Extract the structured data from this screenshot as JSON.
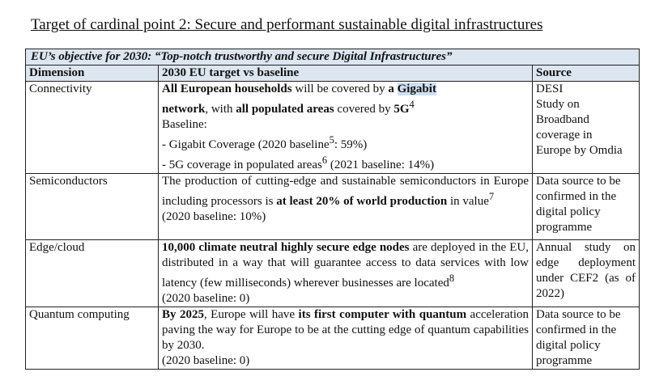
{
  "title": "Target of cardinal point 2: Secure and performant sustainable digital infrastructures",
  "objective": "EU’s objective for 2030: “Top-notch trustworthy and secure Digital Infrastructures”",
  "headers": {
    "dimension": "Dimension",
    "target": "2030 EU target vs baseline",
    "source": "Source"
  },
  "rows": [
    {
      "dimension": "Connectivity",
      "t1": "All European households",
      "t2": " will be covered by ",
      "t3": "a ",
      "t4": "Gigabit",
      "t5": " network",
      "t6": ", with ",
      "t7": "all populated areas",
      "t8": " covered by ",
      "t9": "5G",
      "t10": "4",
      "baseline_label": "Baseline:",
      "b1": "- Gigabit Coverage (2020 baseline",
      "b1sup": "5",
      "b1end": ": 59%)",
      "b2": "- 5G coverage in populated areas",
      "b2sup": "6",
      "b2end": " (2021 baseline: 14%)",
      "source": [
        "DESI",
        "Study on",
        "Broadband",
        "coverage in",
        "Europe by Omdia"
      ]
    },
    {
      "dimension": "Semiconductors",
      "t1": "The production of cutting-edge and sustainable semiconductors in Europe including processors is ",
      "t2": "at least 20% of world production",
      "t3": " in value",
      "t4": "7",
      "baseline": "(2020 baseline: 10%)",
      "source": [
        "Data source to be",
        "confirmed in the",
        "digital policy",
        "programme"
      ]
    },
    {
      "dimension": "Edge/cloud",
      "t1": "10,000 climate neutral highly secure edge nodes",
      "t2": " are deployed in the EU, distributed in a way that will guarantee access to data services with low latency (few milliseconds) wherever businesses are located",
      "t3": "8",
      "baseline": "(2020 baseline: 0)",
      "source": "Annual study on edge deployment under CEF2 (as of 2022)"
    },
    {
      "dimension": "Quantum computing",
      "t1": "By 2025",
      "t2": ", Europe will have ",
      "t3": "its first computer with quantum",
      "t4": " acceleration paving the way for Europe to be at the cutting edge of quantum capabilities by 2030.",
      "baseline": "(2020 baseline: 0)",
      "source": [
        "Data source to be",
        "confirmed in the",
        "digital policy",
        "programme"
      ]
    }
  ]
}
